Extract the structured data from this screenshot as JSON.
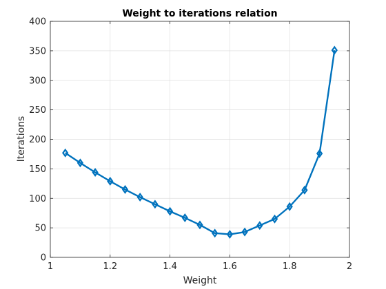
{
  "chart_data": {
    "type": "line",
    "title": "Weight to iterations relation",
    "xlabel": "Weight",
    "ylabel": "Iterations",
    "xlim": [
      1,
      2
    ],
    "ylim": [
      0,
      400
    ],
    "xticks": [
      1,
      1.2,
      1.4,
      1.6,
      1.8,
      2
    ],
    "xtick_labels": [
      "1",
      "1.2",
      "1.4",
      "1.6",
      "1.8",
      "2"
    ],
    "yticks": [
      0,
      50,
      100,
      150,
      200,
      250,
      300,
      350,
      400
    ],
    "ytick_labels": [
      "0",
      "50",
      "100",
      "150",
      "200",
      "250",
      "300",
      "350",
      "400"
    ],
    "grid": true,
    "marker": "diamond",
    "series": [
      {
        "name": "Iterations",
        "color": "#0072BD",
        "x": [
          1.05,
          1.1,
          1.15,
          1.2,
          1.25,
          1.3,
          1.35,
          1.4,
          1.45,
          1.5,
          1.55,
          1.6,
          1.65,
          1.7,
          1.75,
          1.8,
          1.85,
          1.9,
          1.95
        ],
        "y": [
          177,
          160,
          144,
          129,
          115,
          102,
          90,
          78,
          67,
          55,
          41,
          39,
          43,
          54,
          65,
          86,
          114,
          176,
          351
        ]
      }
    ]
  }
}
